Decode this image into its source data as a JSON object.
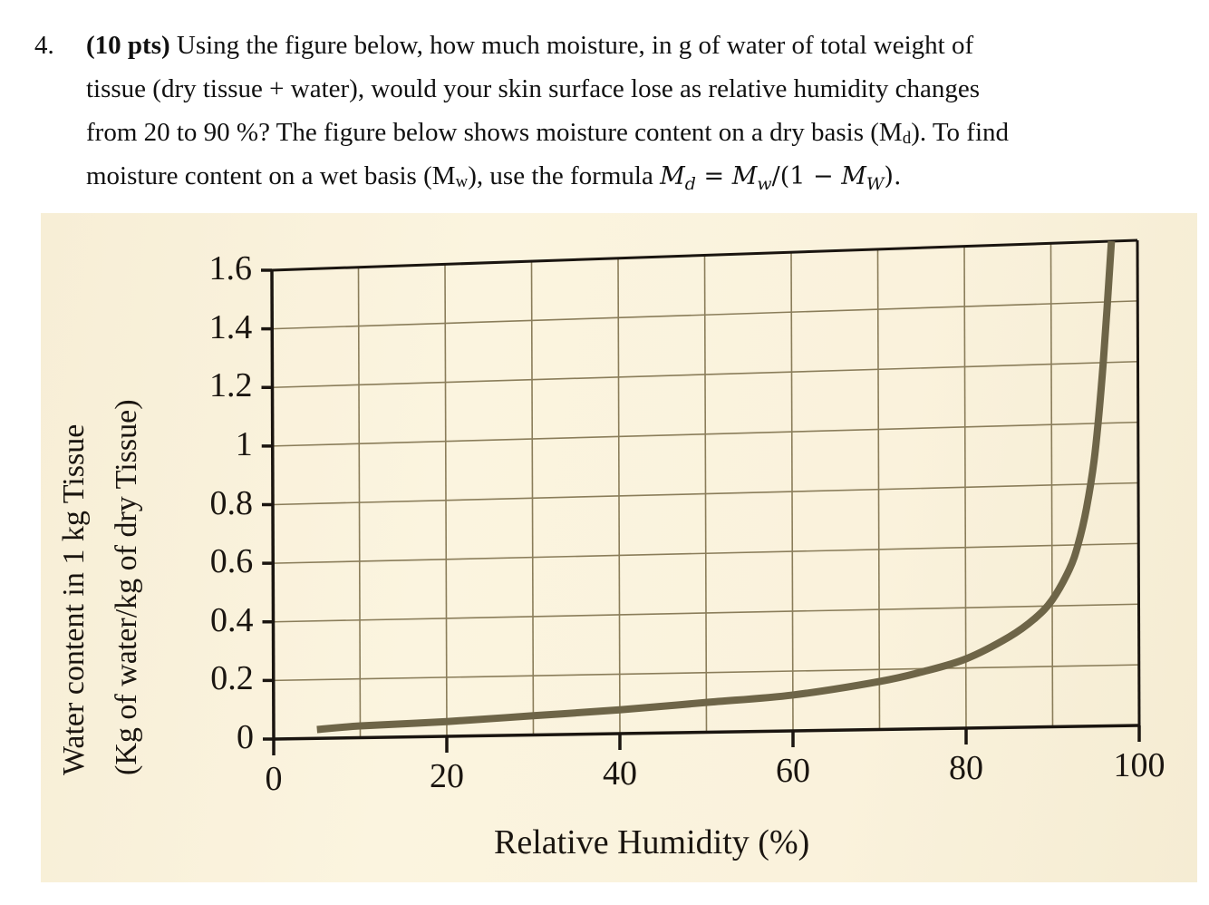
{
  "question": {
    "number": "4.",
    "points": "(10 pts)",
    "line1_rest": " Using the figure below, how much moisture, in g of water of total weight of",
    "line2": "tissue (dry tissue + water), would your skin surface lose as relative humidity changes",
    "line3_a": "from 20 to 90 %? The figure below shows moisture content on a dry basis (M",
    "line3_sub": "d",
    "line3_b": "). To find",
    "line4_a": "moisture content on a wet basis (M",
    "line4_sub": "w",
    "line4_b": "), use the formula ",
    "formula": {
      "lhs": "M",
      "lhs_sub": "d",
      "eq": " = ",
      "num": "M",
      "num_sub": "w",
      "slash": "/(1 − ",
      "den": "M",
      "den_sub": "W",
      "close": ")."
    }
  },
  "chart_data": {
    "type": "line",
    "title": "",
    "xlabel": "Relative Humidity (%)",
    "ylabel": "Water content in 1 kg Tissue (Kg of water/kg of dry Tissue)",
    "ylabel_line1": "Water content in 1 kg Tissue",
    "ylabel_line2": "(Kg of water/kg of dry Tissue)",
    "xlim": [
      0,
      100
    ],
    "ylim": [
      0,
      1.6
    ],
    "x_ticks": [
      "0",
      "20",
      "40",
      "60",
      "80",
      "100"
    ],
    "y_ticks": [
      "0",
      "0.2",
      "0.4",
      "0.6",
      "0.8",
      "1",
      "1.2",
      "1.4",
      "1.6"
    ],
    "grid": true,
    "grid_x_step": 10,
    "grid_y_step": 0.2,
    "legend": null,
    "series": [
      {
        "name": "Moisture content (dry basis)",
        "color": "#6e6548",
        "x": [
          5,
          10,
          20,
          30,
          40,
          50,
          60,
          70,
          75,
          80,
          85,
          88,
          90,
          92,
          93,
          94,
          95,
          96,
          97
        ],
        "y": [
          0.03,
          0.04,
          0.05,
          0.065,
          0.08,
          0.1,
          0.12,
          0.16,
          0.19,
          0.23,
          0.3,
          0.36,
          0.42,
          0.52,
          0.6,
          0.72,
          0.9,
          1.2,
          1.6
        ]
      }
    ]
  },
  "colors": {
    "photo_bg": "#faf2dc",
    "axis": "#1a1510",
    "grid": "#8a7d5a",
    "curve": "#6e6548"
  }
}
